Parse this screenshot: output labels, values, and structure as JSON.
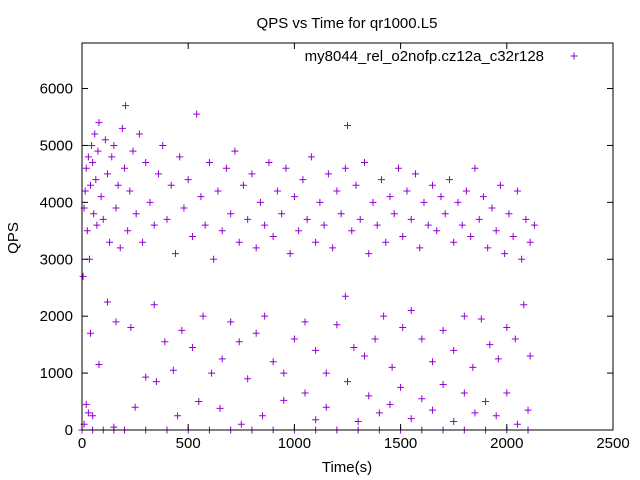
{
  "chart_data": {
    "type": "scatter",
    "title": "QPS vs Time for qr1000.L5",
    "xlabel": "Time(s)",
    "ylabel": "QPS",
    "xlim": [
      0,
      2500
    ],
    "ylim": [
      0,
      6800
    ],
    "xticks": [
      0,
      500,
      1000,
      1500,
      2000,
      2500
    ],
    "yticks": [
      0,
      1000,
      2000,
      3000,
      4000,
      5000,
      6000
    ],
    "grid": false,
    "legend_position": "top-right",
    "marker": "+",
    "series": [
      {
        "name": "my8044_rel_o2nofp.cz12a_c32r128",
        "color": "#9400d3",
        "points": [
          [
            5,
            2700
          ],
          [
            10,
            3900
          ],
          [
            15,
            4200
          ],
          [
            20,
            4600
          ],
          [
            25,
            3500
          ],
          [
            30,
            4800
          ],
          [
            35,
            3000
          ],
          [
            40,
            4300
          ],
          [
            45,
            5000
          ],
          [
            50,
            4700
          ],
          [
            55,
            3800
          ],
          [
            60,
            5200
          ],
          [
            65,
            4400
          ],
          [
            70,
            3600
          ],
          [
            75,
            4900
          ],
          [
            80,
            5400
          ],
          [
            90,
            4100
          ],
          [
            100,
            3700
          ],
          [
            110,
            5100
          ],
          [
            120,
            4500
          ],
          [
            130,
            3300
          ],
          [
            140,
            4800
          ],
          [
            150,
            5000
          ],
          [
            160,
            3900
          ],
          [
            170,
            4300
          ],
          [
            180,
            3200
          ],
          [
            190,
            5300
          ],
          [
            200,
            4600
          ],
          [
            205,
            5700
          ],
          [
            215,
            3500
          ],
          [
            225,
            4200
          ],
          [
            240,
            4900
          ],
          [
            255,
            3800
          ],
          [
            270,
            5200
          ],
          [
            285,
            3300
          ],
          [
            300,
            4700
          ],
          [
            320,
            4000
          ],
          [
            340,
            3600
          ],
          [
            360,
            4500
          ],
          [
            380,
            5000
          ],
          [
            400,
            3700
          ],
          [
            420,
            4300
          ],
          [
            440,
            3100
          ],
          [
            460,
            4800
          ],
          [
            480,
            3900
          ],
          [
            500,
            4400
          ],
          [
            520,
            3400
          ],
          [
            540,
            5550
          ],
          [
            560,
            4100
          ],
          [
            580,
            3600
          ],
          [
            600,
            4700
          ],
          [
            620,
            3000
          ],
          [
            640,
            4200
          ],
          [
            660,
            3500
          ],
          [
            680,
            4600
          ],
          [
            700,
            3800
          ],
          [
            720,
            4900
          ],
          [
            740,
            3300
          ],
          [
            760,
            4300
          ],
          [
            780,
            3700
          ],
          [
            800,
            4500
          ],
          [
            820,
            3200
          ],
          [
            840,
            4000
          ],
          [
            860,
            3600
          ],
          [
            880,
            4700
          ],
          [
            900,
            3400
          ],
          [
            920,
            4200
          ],
          [
            940,
            3800
          ],
          [
            960,
            4600
          ],
          [
            980,
            3100
          ],
          [
            1000,
            4100
          ],
          [
            1020,
            3500
          ],
          [
            1040,
            4400
          ],
          [
            1060,
            3700
          ],
          [
            1080,
            4800
          ],
          [
            1100,
            3300
          ],
          [
            1120,
            4000
          ],
          [
            1140,
            3600
          ],
          [
            1160,
            4500
          ],
          [
            1180,
            3200
          ],
          [
            1200,
            4200
          ],
          [
            1220,
            3800
          ],
          [
            1240,
            4600
          ],
          [
            1250,
            5350
          ],
          [
            1270,
            3500
          ],
          [
            1290,
            4300
          ],
          [
            1310,
            3700
          ],
          [
            1330,
            4700
          ],
          [
            1350,
            3100
          ],
          [
            1370,
            4000
          ],
          [
            1390,
            3600
          ],
          [
            1410,
            4400
          ],
          [
            1430,
            3300
          ],
          [
            1450,
            4100
          ],
          [
            1470,
            3800
          ],
          [
            1490,
            4600
          ],
          [
            1510,
            3400
          ],
          [
            1530,
            4200
          ],
          [
            1550,
            3700
          ],
          [
            1570,
            4500
          ],
          [
            1590,
            3200
          ],
          [
            1610,
            4000
          ],
          [
            1630,
            3600
          ],
          [
            1650,
            4300
          ],
          [
            1670,
            3500
          ],
          [
            1690,
            4100
          ],
          [
            1710,
            3800
          ],
          [
            1730,
            4400
          ],
          [
            1750,
            3300
          ],
          [
            1770,
            4000
          ],
          [
            1790,
            3600
          ],
          [
            1810,
            4200
          ],
          [
            1830,
            3400
          ],
          [
            1850,
            4600
          ],
          [
            1870,
            3700
          ],
          [
            1890,
            4100
          ],
          [
            1910,
            3200
          ],
          [
            1930,
            3900
          ],
          [
            1950,
            3500
          ],
          [
            1970,
            4300
          ],
          [
            1990,
            3100
          ],
          [
            2010,
            3800
          ],
          [
            2030,
            3400
          ],
          [
            2050,
            4200
          ],
          [
            2070,
            3000
          ],
          [
            2090,
            3700
          ],
          [
            2110,
            3300
          ],
          [
            2130,
            3600
          ],
          [
            40,
            1700
          ],
          [
            80,
            1150
          ],
          [
            120,
            2250
          ],
          [
            160,
            1900
          ],
          [
            230,
            1800
          ],
          [
            300,
            930
          ],
          [
            340,
            2200
          ],
          [
            390,
            1550
          ],
          [
            430,
            1050
          ],
          [
            470,
            1750
          ],
          [
            520,
            1450
          ],
          [
            570,
            2000
          ],
          [
            610,
            1000
          ],
          [
            660,
            1250
          ],
          [
            700,
            1900
          ],
          [
            740,
            1550
          ],
          [
            780,
            900
          ],
          [
            820,
            1700
          ],
          [
            860,
            2000
          ],
          [
            900,
            1200
          ],
          [
            950,
            1000
          ],
          [
            1000,
            1600
          ],
          [
            1050,
            1900
          ],
          [
            1100,
            1400
          ],
          [
            1150,
            1000
          ],
          [
            1200,
            1850
          ],
          [
            1240,
            2350
          ],
          [
            1280,
            1450
          ],
          [
            1330,
            1300
          ],
          [
            1380,
            1600
          ],
          [
            1420,
            2000
          ],
          [
            1460,
            1100
          ],
          [
            1510,
            1800
          ],
          [
            1550,
            2100
          ],
          [
            1600,
            1600
          ],
          [
            1650,
            1200
          ],
          [
            1700,
            1750
          ],
          [
            1750,
            1400
          ],
          [
            1800,
            2000
          ],
          [
            1840,
            1100
          ],
          [
            1880,
            1950
          ],
          [
            1920,
            1500
          ],
          [
            1960,
            1250
          ],
          [
            2000,
            1800
          ],
          [
            2040,
            1600
          ],
          [
            2080,
            2200
          ],
          [
            2110,
            1300
          ],
          [
            10,
            100
          ],
          [
            20,
            450
          ],
          [
            30,
            300
          ],
          [
            50,
            250
          ],
          [
            150,
            50
          ],
          [
            250,
            400
          ],
          [
            350,
            850
          ],
          [
            450,
            250
          ],
          [
            550,
            500
          ],
          [
            650,
            380
          ],
          [
            750,
            100
          ],
          [
            850,
            250
          ],
          [
            950,
            520
          ],
          [
            1050,
            650
          ],
          [
            1100,
            180
          ],
          [
            1150,
            400
          ],
          [
            1250,
            850
          ],
          [
            1300,
            150
          ],
          [
            1350,
            600
          ],
          [
            1400,
            300
          ],
          [
            1450,
            450
          ],
          [
            1500,
            750
          ],
          [
            1550,
            200
          ],
          [
            1600,
            550
          ],
          [
            1650,
            350
          ],
          [
            1700,
            800
          ],
          [
            1750,
            150
          ],
          [
            1800,
            650
          ],
          [
            1850,
            300
          ],
          [
            1900,
            500
          ],
          [
            1950,
            250
          ],
          [
            2000,
            650
          ],
          [
            2050,
            100
          ],
          [
            2100,
            350
          ],
          [
            0,
            0
          ],
          [
            50,
            0
          ],
          [
            100,
            0
          ],
          [
            150,
            0
          ],
          [
            200,
            0
          ],
          [
            300,
            0
          ],
          [
            400,
            0
          ],
          [
            500,
            0
          ],
          [
            600,
            0
          ],
          [
            700,
            0
          ],
          [
            800,
            0
          ],
          [
            900,
            0
          ],
          [
            1000,
            0
          ],
          [
            1100,
            0
          ],
          [
            1200,
            0
          ],
          [
            1300,
            0
          ],
          [
            1400,
            0
          ],
          [
            1500,
            0
          ],
          [
            1600,
            0
          ],
          [
            1700,
            0
          ],
          [
            1800,
            0
          ],
          [
            1900,
            0
          ],
          [
            2000,
            0
          ],
          [
            2100,
            0
          ]
        ]
      }
    ]
  }
}
